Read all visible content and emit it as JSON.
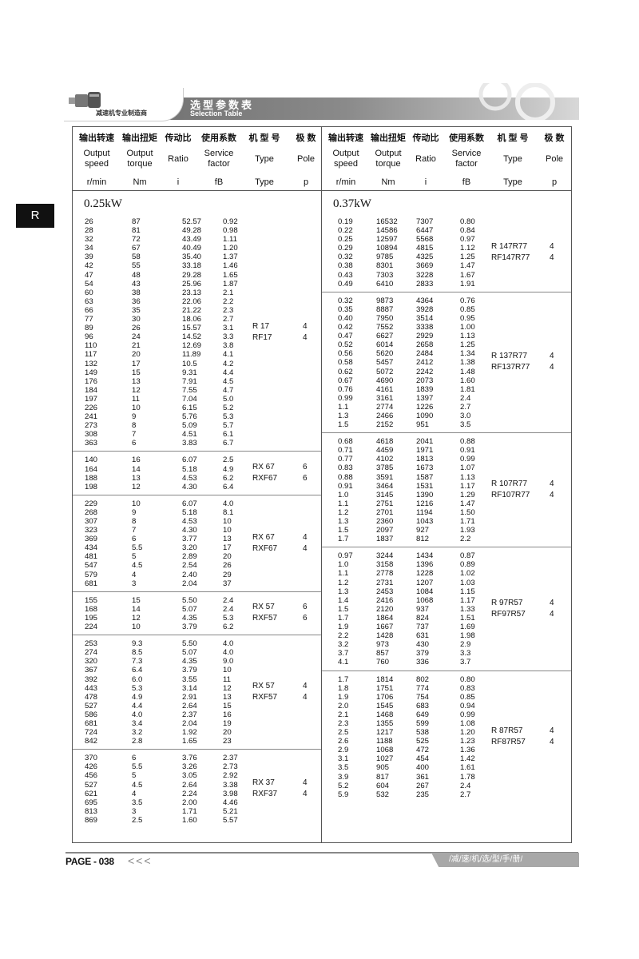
{
  "banner": {
    "slogan": "减速机专业制造商",
    "title_cn": "选型参数表",
    "title_en": "Selection Table"
  },
  "side_tab": "R",
  "headers": {
    "cn": [
      "输出转速",
      "输出扭矩",
      "传动比",
      "使用系数",
      "机 型 号",
      "极 数"
    ],
    "en": [
      "Output speed",
      "Output torque",
      "Ratio",
      "Service factor",
      "Type",
      "Pole"
    ],
    "unit": [
      "r/min",
      "Nm",
      "i",
      "fB",
      "Type",
      "p"
    ]
  },
  "sides": [
    {
      "power": "0.25kW",
      "groups": [
        {
          "type": [
            "R 17",
            "RF17"
          ],
          "pole": [
            "4",
            "4"
          ],
          "rows": [
            [
              "26",
              "87",
              "52.57",
              "0.92"
            ],
            [
              "28",
              "81",
              "49.28",
              "0.98"
            ],
            [
              "32",
              "72",
              "43.49",
              "1.11"
            ],
            [
              "34",
              "67",
              "40.49",
              "1.20"
            ],
            [
              "39",
              "58",
              "35.40",
              "1.37"
            ],
            [
              "42",
              "55",
              "33.18",
              "1.46"
            ],
            [
              "47",
              "48",
              "29.28",
              "1.65"
            ],
            [
              "54",
              "43",
              "25.96",
              "1.87"
            ],
            [
              "60",
              "38",
              "23.13",
              "2.1"
            ],
            [
              "63",
              "36",
              "22.06",
              "2.2"
            ],
            [
              "66",
              "35",
              "21.22",
              "2.3"
            ],
            [
              "77",
              "30",
              "18.06",
              "2.7"
            ],
            [
              "89",
              "26",
              "15.57",
              "3.1"
            ],
            [
              "96",
              "24",
              "14.52",
              "3.3"
            ],
            [
              "110",
              "21",
              "12.69",
              "3.8"
            ],
            [
              "117",
              "20",
              "11.89",
              "4.1"
            ],
            [
              "132",
              "17",
              "10.5",
              "4.2"
            ],
            [
              "149",
              "15",
              "9.31",
              "4.4"
            ],
            [
              "176",
              "13",
              "7.91",
              "4.5"
            ],
            [
              "184",
              "12",
              "7.55",
              "4.7"
            ],
            [
              "197",
              "11",
              "7.04",
              "5.0"
            ],
            [
              "226",
              "10",
              "6.15",
              "5.2"
            ],
            [
              "241",
              "9",
              "5.76",
              "5.3"
            ],
            [
              "273",
              "8",
              "5.09",
              "5.7"
            ],
            [
              "308",
              "7",
              "4.51",
              "6.1"
            ],
            [
              "363",
              "6",
              "3.83",
              "6.7"
            ]
          ]
        },
        {
          "type": [
            "RX 67",
            "RXF67"
          ],
          "pole": [
            "6",
            "6"
          ],
          "rows": [
            [
              "140",
              "16",
              "6.07",
              "2.5"
            ],
            [
              "164",
              "14",
              "5.18",
              "4.9"
            ],
            [
              "188",
              "13",
              "4.53",
              "6.2"
            ],
            [
              "198",
              "12",
              "4.30",
              "6.4"
            ]
          ]
        },
        {
          "type": [
            "RX 67",
            "RXF67"
          ],
          "pole": [
            "4",
            "4"
          ],
          "rows": [
            [
              "229",
              "10",
              "6.07",
              "4.0"
            ],
            [
              "268",
              "9",
              "5.18",
              "8.1"
            ],
            [
              "307",
              "8",
              "4.53",
              "10"
            ],
            [
              "323",
              "7",
              "4.30",
              "10"
            ],
            [
              "369",
              "6",
              "3.77",
              "13"
            ],
            [
              "434",
              "5.5",
              "3.20",
              "17"
            ],
            [
              "481",
              "5",
              "2.89",
              "20"
            ],
            [
              "547",
              "4.5",
              "2.54",
              "26"
            ],
            [
              "579",
              "4",
              "2.40",
              "29"
            ],
            [
              "681",
              "3",
              "2.04",
              "37"
            ]
          ]
        },
        {
          "type": [
            "RX 57",
            "RXF57"
          ],
          "pole": [
            "6",
            "6"
          ],
          "rows": [
            [
              "155",
              "15",
              "5.50",
              "2.4"
            ],
            [
              "168",
              "14",
              "5.07",
              "2.4"
            ],
            [
              "195",
              "12",
              "4.35",
              "5.3"
            ],
            [
              "224",
              "10",
              "3.79",
              "6.2"
            ]
          ]
        },
        {
          "type": [
            "RX 57",
            "RXF57"
          ],
          "pole": [
            "4",
            "4"
          ],
          "rows": [
            [
              "253",
              "9.3",
              "5.50",
              "4.0"
            ],
            [
              "274",
              "8.5",
              "5.07",
              "4.0"
            ],
            [
              "320",
              "7.3",
              "4.35",
              "9.0"
            ],
            [
              "367",
              "6.4",
              "3.79",
              "10"
            ],
            [
              "392",
              "6.0",
              "3.55",
              "11"
            ],
            [
              "443",
              "5.3",
              "3.14",
              "12"
            ],
            [
              "478",
              "4.9",
              "2.91",
              "13"
            ],
            [
              "527",
              "4.4",
              "2.64",
              "15"
            ],
            [
              "586",
              "4.0",
              "2.37",
              "16"
            ],
            [
              "681",
              "3.4",
              "2.04",
              "19"
            ],
            [
              "724",
              "3.2",
              "1.92",
              "20"
            ],
            [
              "842",
              "2.8",
              "1.65",
              "23"
            ]
          ]
        },
        {
          "type": [
            "RX 37",
            "RXF37"
          ],
          "pole": [
            "4",
            "4"
          ],
          "rows": [
            [
              "370",
              "6",
              "3.76",
              "2.37"
            ],
            [
              "426",
              "5.5",
              "3.26",
              "2.73"
            ],
            [
              "456",
              "5",
              "3.05",
              "2.92"
            ],
            [
              "527",
              "4.5",
              "2.64",
              "3.38"
            ],
            [
              "621",
              "4",
              "2.24",
              "3.98"
            ],
            [
              "695",
              "3.5",
              "2.00",
              "4.46"
            ],
            [
              "813",
              "3",
              "1.71",
              "5.21"
            ],
            [
              "869",
              "2.5",
              "1.60",
              "5.57"
            ]
          ]
        }
      ]
    },
    {
      "power": "0.37kW",
      "groups": [
        {
          "type": [
            "R 147R77",
            "RF147R77"
          ],
          "pole": [
            "4",
            "4"
          ],
          "rows": [
            [
              "0.19",
              "16532",
              "7307",
              "0.80"
            ],
            [
              "0.22",
              "14586",
              "6447",
              "0.84"
            ],
            [
              "0.25",
              "12597",
              "5568",
              "0.97"
            ],
            [
              "0.29",
              "10894",
              "4815",
              "1.12"
            ],
            [
              "0.32",
              "9785",
              "4325",
              "1.25"
            ],
            [
              "0.38",
              "8301",
              "3669",
              "1.47"
            ],
            [
              "0.43",
              "7303",
              "3228",
              "1.67"
            ],
            [
              "0.49",
              "6410",
              "2833",
              "1.91"
            ]
          ]
        },
        {
          "type": [
            "R 137R77",
            "RF137R77"
          ],
          "pole": [
            "4",
            "4"
          ],
          "rows": [
            [
              "0.32",
              "9873",
              "4364",
              "0.76"
            ],
            [
              "0.35",
              "8887",
              "3928",
              "0.85"
            ],
            [
              "0.40",
              "7950",
              "3514",
              "0.95"
            ],
            [
              "0.42",
              "7552",
              "3338",
              "1.00"
            ],
            [
              "0.47",
              "6627",
              "2929",
              "1.13"
            ],
            [
              "0.52",
              "6014",
              "2658",
              "1.25"
            ],
            [
              "0.56",
              "5620",
              "2484",
              "1.34"
            ],
            [
              "0.58",
              "5457",
              "2412",
              "1.38"
            ],
            [
              "0.62",
              "5072",
              "2242",
              "1.48"
            ],
            [
              "0.67",
              "4690",
              "2073",
              "1.60"
            ],
            [
              "0.76",
              "4161",
              "1839",
              "1.81"
            ],
            [
              "0.99",
              "3161",
              "1397",
              "2.4"
            ],
            [
              "1.1",
              "2774",
              "1226",
              "2.7"
            ],
            [
              "1.3",
              "2466",
              "1090",
              "3.0"
            ],
            [
              "1.5",
              "2152",
              "951",
              "3.5"
            ]
          ]
        },
        {
          "type": [
            "R 107R77",
            "RF107R77"
          ],
          "pole": [
            "4",
            "4"
          ],
          "rows": [
            [
              "0.68",
              "4618",
              "2041",
              "0.88"
            ],
            [
              "0.71",
              "4459",
              "1971",
              "0.91"
            ],
            [
              "0.77",
              "4102",
              "1813",
              "0.99"
            ],
            [
              "0.83",
              "3785",
              "1673",
              "1.07"
            ],
            [
              "0.88",
              "3591",
              "1587",
              "1.13"
            ],
            [
              "0.91",
              "3464",
              "1531",
              "1.17"
            ],
            [
              "1.0",
              "3145",
              "1390",
              "1.29"
            ],
            [
              "1.1",
              "2751",
              "1216",
              "1.47"
            ],
            [
              "1.2",
              "2701",
              "1194",
              "1.50"
            ],
            [
              "1.3",
              "2360",
              "1043",
              "1.71"
            ],
            [
              "1.5",
              "2097",
              "927",
              "1.93"
            ],
            [
              "1.7",
              "1837",
              "812",
              "2.2"
            ]
          ]
        },
        {
          "type": [
            "R 97R57",
            "RF97R57"
          ],
          "pole": [
            "4",
            "4"
          ],
          "rows": [
            [
              "0.97",
              "3244",
              "1434",
              "0.87"
            ],
            [
              "1.0",
              "3158",
              "1396",
              "0.89"
            ],
            [
              "1.1",
              "2778",
              "1228",
              "1.02"
            ],
            [
              "1.2",
              "2731",
              "1207",
              "1.03"
            ],
            [
              "1.3",
              "2453",
              "1084",
              "1.15"
            ],
            [
              "1.4",
              "2416",
              "1068",
              "1.17"
            ],
            [
              "1.5",
              "2120",
              "937",
              "1.33"
            ],
            [
              "1.7",
              "1864",
              "824",
              "1.51"
            ],
            [
              "1.9",
              "1667",
              "737",
              "1.69"
            ],
            [
              "2.2",
              "1428",
              "631",
              "1.98"
            ],
            [
              "3.2",
              "973",
              "430",
              "2.9"
            ],
            [
              "3.7",
              "857",
              "379",
              "3.3"
            ],
            [
              "4.1",
              "760",
              "336",
              "3.7"
            ]
          ]
        },
        {
          "type": [
            "R 87R57",
            "RF87R57"
          ],
          "pole": [
            "4",
            "4"
          ],
          "rows": [
            [
              "1.7",
              "1814",
              "802",
              "0.80"
            ],
            [
              "1.8",
              "1751",
              "774",
              "0.83"
            ],
            [
              "1.9",
              "1706",
              "754",
              "0.85"
            ],
            [
              "2.0",
              "1545",
              "683",
              "0.94"
            ],
            [
              "2.1",
              "1468",
              "649",
              "0.99"
            ],
            [
              "2.3",
              "1355",
              "599",
              "1.08"
            ],
            [
              "2.5",
              "1217",
              "538",
              "1.20"
            ],
            [
              "2.6",
              "1188",
              "525",
              "1.23"
            ],
            [
              "2.9",
              "1068",
              "472",
              "1.36"
            ],
            [
              "3.1",
              "1027",
              "454",
              "1.42"
            ],
            [
              "3.5",
              "905",
              "400",
              "1.61"
            ],
            [
              "3.9",
              "817",
              "361",
              "1.78"
            ],
            [
              "5.2",
              "604",
              "267",
              "2.4"
            ],
            [
              "5.9",
              "532",
              "235",
              "2.7"
            ]
          ]
        }
      ]
    }
  ],
  "footer": {
    "page": "PAGE - 038",
    "arrows": "<<<",
    "slogan": "/减/速/机/选/型/手/册/"
  }
}
